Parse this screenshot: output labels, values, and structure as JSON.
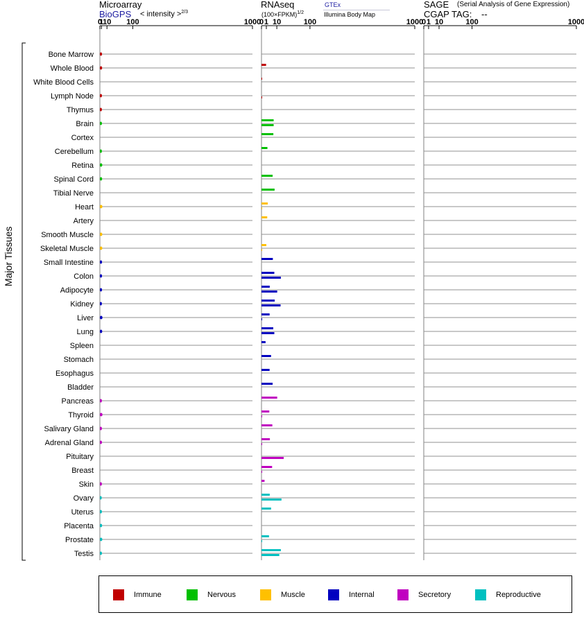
{
  "header": {
    "microarray_title": "Microarray",
    "microarray_source": "BioGPS",
    "microarray_intensity": "< intensity >",
    "microarray_exponent": "2/3",
    "rnaseq_title": "RNAseq",
    "rnaseq_unit": "(100×FPKM)",
    "rnaseq_exponent": "1/2",
    "rnaseq_source1": "GTEx",
    "rnaseq_source2": "Illumina Body Map",
    "sage_title": "SAGE",
    "sage_subtitle": "(Serial Analysis of Gene Expression)",
    "sage_tag_label": "CGAP TAG:",
    "sage_tag_value": "--"
  },
  "y_axis_label": "Major Tissues",
  "legend": [
    {
      "label": "Immune",
      "color": "#c00000"
    },
    {
      "label": "Nervous",
      "color": "#00c000"
    },
    {
      "label": "Muscle",
      "color": "#ffc000"
    },
    {
      "label": "Internal",
      "color": "#0000c0"
    },
    {
      "label": "Secretory",
      "color": "#c000c0"
    },
    {
      "label": "Reproductive",
      "color": "#00c0c0"
    }
  ],
  "chart_data": {
    "type": "bar",
    "scale": "power",
    "axis_ticks": [
      "0",
      "1",
      "10",
      "100",
      "1000"
    ],
    "tick_values": [
      0,
      1,
      10,
      100,
      1000
    ],
    "categories": [
      "Bone Marrow",
      "Whole Blood",
      "White Blood Cells",
      "Lymph Node",
      "Thymus",
      "Brain",
      "Cortex",
      "Cerebellum",
      "Retina",
      "Spinal Cord",
      "Tibial Nerve",
      "Heart",
      "Artery",
      "Smooth Muscle",
      "Skeletal Muscle",
      "Small Intestine",
      "Colon",
      "Adipocyte",
      "Kidney",
      "Liver",
      "Lung",
      "Spleen",
      "Stomach",
      "Esophagus",
      "Bladder",
      "Pancreas",
      "Thyroid",
      "Salivary Gland",
      "Adrenal Gland",
      "Pituitary",
      "Breast",
      "Skin",
      "Ovary",
      "Uterus",
      "Placenta",
      "Prostate",
      "Testis"
    ],
    "groups": [
      "Immune",
      "Immune",
      "Immune",
      "Immune",
      "Immune",
      "Nervous",
      "Nervous",
      "Nervous",
      "Nervous",
      "Nervous",
      "Nervous",
      "Muscle",
      "Muscle",
      "Muscle",
      "Muscle",
      "Internal",
      "Internal",
      "Internal",
      "Internal",
      "Internal",
      "Internal",
      "Internal",
      "Internal",
      "Internal",
      "Internal",
      "Secretory",
      "Secretory",
      "Secretory",
      "Secretory",
      "Secretory",
      "Secretory",
      "Secretory",
      "Reproductive",
      "Reproductive",
      "Reproductive",
      "Reproductive",
      "Reproductive"
    ],
    "series": [
      {
        "name": "BioGPS",
        "values": [
          1.7,
          1.8,
          null,
          1.6,
          1.5,
          1.6,
          null,
          1.5,
          2.0,
          1.8,
          null,
          2.1,
          null,
          2.0,
          2.0,
          1.7,
          1.7,
          1.7,
          1.5,
          2.2,
          1.9,
          null,
          null,
          null,
          null,
          1.5,
          2.2,
          1.5,
          1.6,
          null,
          null,
          1.5,
          1.3,
          1.5,
          1.8,
          2.0,
          1.6
        ]
      },
      {
        "name": "GTEx",
        "values": [
          null,
          0.9,
          0.01,
          null,
          null,
          6.3,
          6.0,
          1.5,
          null,
          5.3,
          7.3,
          1.7,
          1.4,
          null,
          1.0,
          5.5,
          7.0,
          2.9,
          7.5,
          2.8,
          5.9,
          0.7,
          3.9,
          2.8,
          5.3,
          10.5,
          2.6,
          5.0,
          3.0,
          null,
          4.8,
          0.4,
          2.9,
          3.9,
          null,
          2.4,
          16.0
        ]
      },
      {
        "name": "Illumina Body Map",
        "values": [
          null,
          null,
          null,
          0.02,
          null,
          6.3,
          null,
          null,
          null,
          null,
          null,
          0.01,
          null,
          null,
          0.01,
          null,
          16.0,
          10.5,
          15.5,
          0.02,
          7.0,
          null,
          null,
          null,
          null,
          null,
          0.01,
          null,
          0.01,
          21.0,
          0.01,
          null,
          17.0,
          null,
          null,
          0.01,
          13.5
        ]
      }
    ]
  }
}
